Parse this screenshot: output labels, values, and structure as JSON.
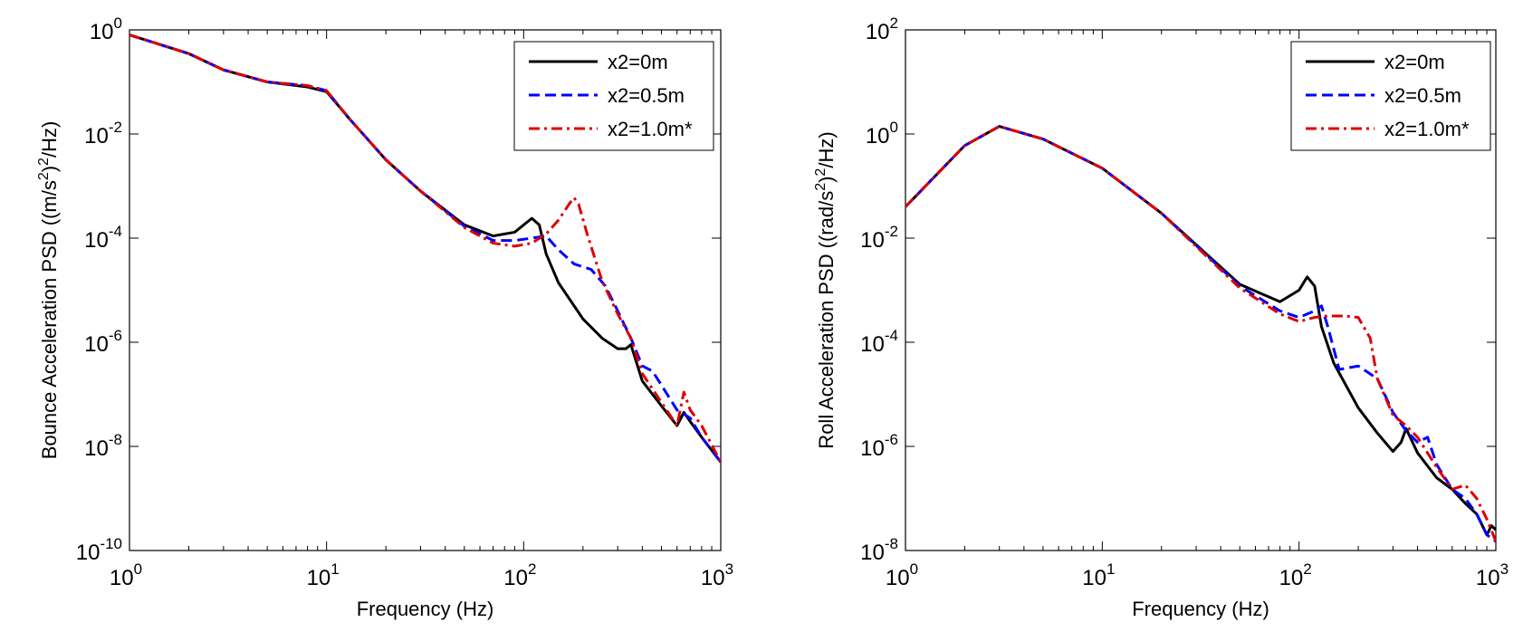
{
  "chart_data": [
    {
      "type": "line",
      "xscale": "log",
      "yscale": "log",
      "xlabel": "Frequency (Hz)",
      "ylabel": "Bounce Acceleration PSD ((m/s2)2/Hz)",
      "ylabel_parts": [
        "Bounce Acceleration PSD ((m/s",
        "2",
        ")",
        "2",
        "/Hz)"
      ],
      "xlim": [
        1,
        1000
      ],
      "ylim": [
        1e-10,
        1
      ],
      "x_ticks": [
        {
          "base": "10",
          "exp": "0"
        },
        {
          "base": "10",
          "exp": "1"
        },
        {
          "base": "10",
          "exp": "2"
        },
        {
          "base": "10",
          "exp": "3"
        }
      ],
      "y_ticks": [
        {
          "base": "10",
          "exp": "0"
        },
        {
          "base": "10",
          "exp": "-2"
        },
        {
          "base": "10",
          "exp": "-4"
        },
        {
          "base": "10",
          "exp": "-6"
        },
        {
          "base": "10",
          "exp": "-8"
        },
        {
          "base": "10",
          "exp": "-10"
        }
      ],
      "legend_position": "top-right",
      "series": [
        {
          "name": "x2=0m",
          "color": "#000000",
          "style": "solid",
          "x": [
            1,
            2,
            3,
            5,
            8,
            10,
            13,
            20,
            30,
            50,
            70,
            90,
            110,
            120,
            130,
            150,
            200,
            250,
            300,
            330,
            350,
            400,
            500,
            600,
            650,
            700,
            800,
            1000
          ],
          "y": [
            0.8,
            0.35,
            0.17,
            0.1,
            0.08,
            0.065,
            0.02,
            0.0032,
            0.0008,
            0.00018,
            0.00011,
            0.00013,
            0.00024,
            0.00018,
            5e-05,
            1.4e-05,
            2.8e-06,
            1.2e-06,
            7.5e-07,
            7.5e-07,
            9e-07,
            1.8e-07,
            6e-08,
            2.5e-08,
            4.5e-08,
            3e-08,
            1.5e-08,
            5e-09
          ]
        },
        {
          "name": "x2=0.5m",
          "color": "#0000ff",
          "style": "dashed",
          "x": [
            1,
            2,
            3,
            5,
            8,
            10,
            13,
            20,
            30,
            50,
            70,
            90,
            110,
            130,
            150,
            180,
            220,
            260,
            300,
            350,
            400,
            450,
            500,
            600,
            700,
            800,
            1000
          ],
          "y": [
            0.8,
            0.35,
            0.17,
            0.1,
            0.085,
            0.068,
            0.02,
            0.0032,
            0.0008,
            0.00017,
            9e-05,
            9e-05,
            0.0001,
            0.00011,
            6e-05,
            3.2e-05,
            2.5e-05,
            1.2e-05,
            4e-06,
            1.2e-06,
            3.5e-07,
            2.8e-07,
            1.5e-07,
            5e-08,
            3.5e-08,
            1.5e-08,
            5e-09
          ]
        },
        {
          "name": "x2=1.0m*",
          "color": "#dd0000",
          "style": "dashdot",
          "x": [
            1,
            2,
            3,
            5,
            8,
            10,
            13,
            20,
            30,
            50,
            70,
            90,
            110,
            130,
            150,
            170,
            180,
            190,
            210,
            250,
            300,
            350,
            400,
            500,
            600,
            650,
            700,
            800,
            1000
          ],
          "y": [
            0.8,
            0.35,
            0.17,
            0.1,
            0.085,
            0.068,
            0.02,
            0.0032,
            0.0008,
            0.00016,
            8e-05,
            7e-05,
            8e-05,
            0.00012,
            0.00022,
            0.00045,
            0.0006,
            0.00045,
            0.00012,
            1.5e-05,
            3.5e-06,
            1.2e-06,
            2.5e-07,
            7e-08,
            2.5e-08,
            1.1e-07,
            5e-08,
            2.5e-08,
            5e-09
          ]
        }
      ]
    },
    {
      "type": "line",
      "xscale": "log",
      "yscale": "log",
      "xlabel": "Frequency (Hz)",
      "ylabel": "Roll Acceleration PSD ((rad/s2)2/Hz)",
      "ylabel_parts": [
        "Roll Acceleration PSD ((rad/s",
        "2",
        ")",
        "2",
        "/Hz)"
      ],
      "xlim": [
        1,
        1000
      ],
      "ylim": [
        1e-08,
        100
      ],
      "x_ticks": [
        {
          "base": "10",
          "exp": "0"
        },
        {
          "base": "10",
          "exp": "1"
        },
        {
          "base": "10",
          "exp": "2"
        },
        {
          "base": "10",
          "exp": "3"
        }
      ],
      "y_ticks": [
        {
          "base": "10",
          "exp": "2"
        },
        {
          "base": "10",
          "exp": "0"
        },
        {
          "base": "10",
          "exp": "-2"
        },
        {
          "base": "10",
          "exp": "-4"
        },
        {
          "base": "10",
          "exp": "-6"
        },
        {
          "base": "10",
          "exp": "-8"
        }
      ],
      "legend_position": "top-right",
      "series": [
        {
          "name": "x2=0m",
          "color": "#000000",
          "style": "solid",
          "x": [
            1,
            2,
            3,
            5,
            10,
            20,
            50,
            80,
            100,
            110,
            120,
            130,
            150,
            200,
            250,
            300,
            330,
            350,
            400,
            500,
            600,
            700,
            800,
            900,
            950,
            1000
          ],
          "y": [
            0.04,
            0.6,
            1.4,
            0.8,
            0.22,
            0.03,
            0.0013,
            0.0006,
            0.001,
            0.0018,
            0.0012,
            0.0002,
            4e-05,
            5.5e-06,
            1.8e-06,
            8e-07,
            1.2e-06,
            2.2e-06,
            7.5e-07,
            2.5e-07,
            1.5e-07,
            8e-08,
            5e-08,
            2e-08,
            3e-08,
            2.5e-08
          ]
        },
        {
          "name": "x2=0.5m",
          "color": "#0000ff",
          "style": "dashed",
          "x": [
            1,
            2,
            3,
            5,
            10,
            20,
            50,
            80,
            100,
            120,
            130,
            140,
            160,
            200,
            250,
            300,
            350,
            400,
            450,
            500,
            600,
            700,
            800,
            900,
            1000
          ],
          "y": [
            0.04,
            0.6,
            1.4,
            0.8,
            0.22,
            0.03,
            0.0012,
            0.0004,
            0.0003,
            0.0004,
            0.0005,
            0.0002,
            3e-05,
            3.5e-05,
            2e-05,
            4.5e-06,
            2e-06,
            1.2e-06,
            1.5e-06,
            4.5e-07,
            1.5e-07,
            1e-07,
            5e-08,
            2e-08,
            1.5e-08
          ]
        },
        {
          "name": "x2=1.0m*",
          "color": "#dd0000",
          "style": "dashdot",
          "x": [
            1,
            2,
            3,
            5,
            10,
            20,
            50,
            80,
            100,
            120,
            140,
            170,
            200,
            230,
            250,
            300,
            350,
            400,
            500,
            600,
            700,
            800,
            900,
            1000
          ],
          "y": [
            0.04,
            0.6,
            1.4,
            0.8,
            0.22,
            0.03,
            0.0011,
            0.00035,
            0.00025,
            0.0003,
            0.00032,
            0.00032,
            0.0003,
            0.00012,
            2e-05,
            4e-06,
            2.5e-06,
            1.5e-06,
            4e-07,
            1.5e-07,
            1.8e-07,
            1e-07,
            4e-08,
            1.5e-08
          ]
        }
      ]
    }
  ]
}
